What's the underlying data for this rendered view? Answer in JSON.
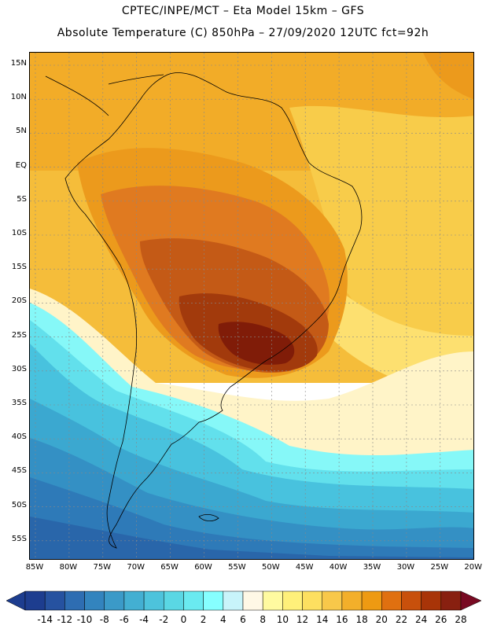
{
  "header": {
    "line1": "CPTEC/INPE/MCT –  Eta Model 15km – GFS",
    "line2": "Absolute Temperature (C) 850hPa – 27/09/2020 12UTC fct=92h"
  },
  "lat_labels": [
    "15N",
    "10N",
    "5N",
    "EQ",
    "5S",
    "10S",
    "15S",
    "20S",
    "25S",
    "30S",
    "35S",
    "40S",
    "45S",
    "50S",
    "55S"
  ],
  "lon_labels": [
    "85W",
    "80W",
    "75W",
    "70W",
    "65W",
    "60W",
    "55W",
    "50W",
    "45W",
    "40W",
    "35W",
    "30W",
    "25W",
    "20W"
  ],
  "colorbar": {
    "labels": [
      "-14",
      "-12",
      "-10",
      "-8",
      "-6",
      "-4",
      "-2",
      "0",
      "2",
      "4",
      "6",
      "8",
      "10",
      "12",
      "14",
      "16",
      "18",
      "20",
      "22",
      "24",
      "26",
      "28"
    ],
    "colors": [
      "#1d3d8f",
      "#2652a0",
      "#2e6db2",
      "#3384be",
      "#3b9ac8",
      "#43afd2",
      "#4dc3dc",
      "#5ad7e4",
      "#6aeaf0",
      "#86ffff",
      "#c8f4fa",
      "#fff8e6",
      "#fffaa0",
      "#fff07a",
      "#fddf60",
      "#f8c84a",
      "#f3af2a",
      "#ee9a12",
      "#e07010",
      "#c8500c",
      "#a83408",
      "#882010"
    ],
    "low_arrow_color": "#1d3d8f",
    "high_arrow_color": "#780a22"
  },
  "map_colors": {
    "hot_28": "#801c08",
    "c26": "#a23a0c",
    "c24": "#c45a16",
    "c22": "#e07a20",
    "c20": "#ec9a1c",
    "c18": "#f2ac28",
    "c16": "#f5bd3a",
    "c14": "#f8cc4a",
    "c12": "#fde070",
    "c8": "#fff4c8",
    "c4": "#86f8f8",
    "c2": "#62e0ec",
    "c0": "#48c2de",
    "cm2": "#3ba8d0",
    "cm4": "#3490c4",
    "cm6": "#2e7ab8",
    "cm8": "#2966aa",
    "cm10": "#24559c",
    "coast": "#000000",
    "grid": "#888888"
  }
}
